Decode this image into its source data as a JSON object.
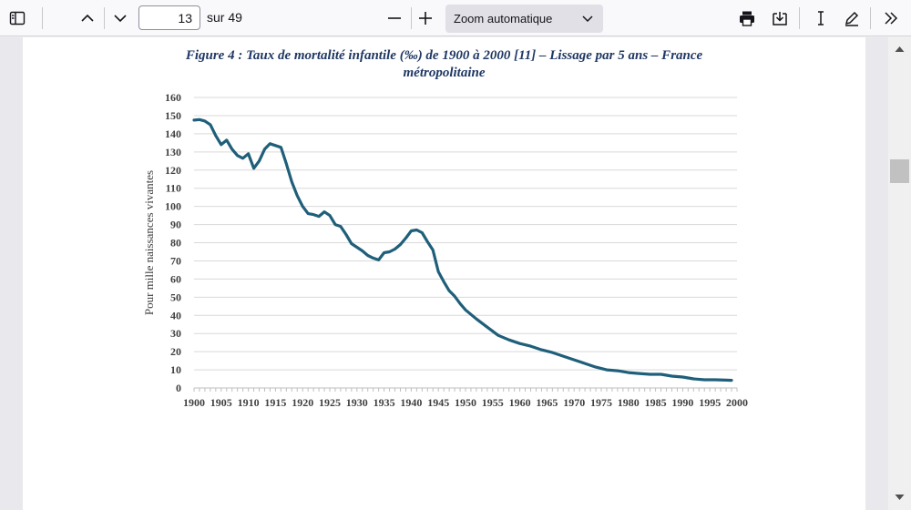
{
  "toolbar": {
    "page_number": "13",
    "page_total": "sur 49",
    "zoom_value": "Zoom automatique"
  },
  "figure": {
    "title_line1": "Figure 4 : Taux de mortalité infantile (‰)  de 1900 à 2000 [11] – Lissage par 5 ans – France",
    "title_line2": "métropolitaine"
  },
  "chart_data": {
    "type": "line",
    "title": "Figure 4 : Taux de mortalité infantile (‰)  de 1900 à 2000 [11] – Lissage par 5 ans – France métropolitaine",
    "xlabel": "",
    "ylabel": "Pour mille naissances vivantes",
    "xlim": [
      1900,
      2000
    ],
    "ylim": [
      0,
      160
    ],
    "yticks": [
      "0",
      "10",
      "20",
      "30",
      "40",
      "50",
      "60",
      "70",
      "80",
      "90",
      "100",
      "110",
      "120",
      "130",
      "140",
      "150",
      "160"
    ],
    "xticks": [
      "1900",
      "1905",
      "1910",
      "1915",
      "1920",
      "1925",
      "1930",
      "1935",
      "1940",
      "1945",
      "1950",
      "1955",
      "1960",
      "1965",
      "1970",
      "1975",
      "1980",
      "1985",
      "1990",
      "1995",
      "2000"
    ],
    "grid": true,
    "color": "#1f5f7a",
    "series": [
      {
        "x": [
          1900,
          1901,
          1902,
          1903,
          1904,
          1905,
          1906,
          1907,
          1908,
          1909,
          1910,
          1911,
          1912,
          1913,
          1914,
          1915,
          1916,
          1917,
          1918,
          1919,
          1920,
          1921,
          1922,
          1923,
          1924,
          1925,
          1926,
          1927,
          1928,
          1929,
          1930,
          1931,
          1932,
          1933,
          1934,
          1935,
          1936,
          1937,
          1938,
          1939,
          1940,
          1941,
          1942,
          1943,
          1944,
          1945,
          1946,
          1947,
          1948,
          1949,
          1950,
          1952,
          1954,
          1956,
          1958,
          1960,
          1962,
          1964,
          1966,
          1968,
          1970,
          1972,
          1974,
          1976,
          1978,
          1980,
          1982,
          1984,
          1986,
          1988,
          1990,
          1992,
          1994,
          1996,
          1998,
          1999
        ],
        "y": [
          147.5,
          147.8,
          147,
          145,
          139,
          134,
          136.5,
          131.5,
          128,
          126.5,
          129,
          121,
          125,
          131.5,
          134.5,
          133.5,
          132.5,
          123.5,
          113.5,
          106,
          100,
          96,
          95.5,
          94.5,
          97,
          95,
          90,
          89,
          84.5,
          79.5,
          77.5,
          75.5,
          73,
          71.5,
          70.5,
          74.5,
          75,
          76.5,
          79,
          82.5,
          86.5,
          87,
          85.5,
          80.5,
          76,
          64,
          58.5,
          53.5,
          50.5,
          46.5,
          43,
          38,
          33.5,
          29,
          26.5,
          24.5,
          23,
          21,
          19.5,
          17.5,
          15.5,
          13.5,
          11.5,
          10,
          9.5,
          8.5,
          8,
          7.5,
          7.5,
          6.5,
          6,
          5,
          4.5,
          4.5,
          4.3,
          4.2
        ]
      }
    ]
  }
}
